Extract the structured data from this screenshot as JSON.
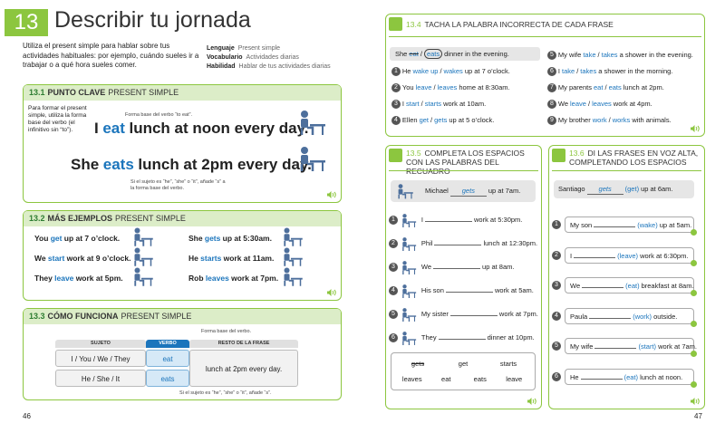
{
  "header": {
    "number": "13",
    "title": "Describir tu jornada",
    "intro": "Utiliza el present simple para hablar sobre tus actividades habituales: por ejemplo, cuándo sueles ir a trabajar o a qué hora sueles comer.",
    "legend": [
      {
        "label": "Lenguaje",
        "text": "Present simple"
      },
      {
        "label": "Vocabulario",
        "text": "Actividades diarias"
      },
      {
        "label": "Habilidad",
        "text": "Hablar de tus actividades diarias"
      }
    ]
  },
  "key_point": {
    "number": "13.1",
    "title": "PUNTO CLAVE",
    "subtitle": "PRESENT SIMPLE",
    "note": "Para formar el present simple, utiliza la forma base del verbo (el infinitivo sin “to”).",
    "sentences": [
      {
        "subject": "I",
        "verb": "eat",
        "rest": "lunch at noon every day.",
        "annotation": "Forma base del verbo “to eat”."
      },
      {
        "subject": "She",
        "verb": "eats",
        "rest": "lunch at 2pm every day.",
        "annotation": "Si el sujeto es “he”, “she” o “it”, añade “s” a la forma base del verbo."
      }
    ]
  },
  "more_examples": {
    "number": "13.2",
    "title": "MÁS EJEMPLOS",
    "subtitle": "PRESENT SIMPLE",
    "sentences": [
      {
        "subject": "You",
        "verb": "get",
        "rest": "up at 7 o’clock."
      },
      {
        "subject": "We",
        "verb": "start",
        "rest": "work at 9 o’clock."
      },
      {
        "subject": "They",
        "verb": "leave",
        "rest": "work at 5pm."
      },
      {
        "subject": "She",
        "verb": "gets",
        "rest": "up at 5:30am."
      },
      {
        "subject": "He",
        "verb": "starts",
        "rest": "work at 11am."
      },
      {
        "subject": "Rob",
        "verb": "leaves",
        "rest": "work at 7pm."
      }
    ]
  },
  "how_it_works": {
    "number": "13.3",
    "title": "CÓMO FUNCIONA",
    "subtitle": "PRESENT SIMPLE",
    "columns": [
      "SUJETO",
      "VERBO",
      "RESTO DE LA FRASE"
    ],
    "rows": [
      [
        "I / You / We / They",
        "eat"
      ],
      [
        "He / She / It",
        "eats"
      ]
    ],
    "rest": "lunch at 2pm every day.",
    "annotations": [
      "Forma base del verbo.",
      "Si el sujeto es “he”, “she” o “it”, añade “s”."
    ]
  },
  "exercise_4": {
    "number": "13.4",
    "title": "TACHA LA PALABRA INCORRECTA DE CADA FRASE",
    "separator": "/",
    "example": {
      "subject": "She",
      "option1": "eat",
      "option2": "eats",
      "rest": "dinner in the evening."
    },
    "items": [
      {
        "number": 1,
        "subject": "He",
        "option1": "wake up",
        "option2": "wakes",
        "rest": "up at 7 o’clock."
      },
      {
        "number": 2,
        "subject": "You",
        "option1": "leave",
        "option2": "leaves",
        "rest": "home at 8:30am."
      },
      {
        "number": 3,
        "subject": "I",
        "option1": "start",
        "option2": "starts",
        "rest": "work at 10am."
      },
      {
        "number": 4,
        "subject": "Ellen",
        "option1": "get",
        "option2": "gets",
        "rest": "up at 5 o’clock."
      },
      {
        "number": 5,
        "subject": "My wife",
        "option1": "take",
        "option2": "takes",
        "rest": "a shower in the evening."
      },
      {
        "number": 6,
        "subject": "I",
        "option1": "take",
        "option2": "takes",
        "rest": "a shower in the morning."
      },
      {
        "number": 7,
        "subject": "My parents",
        "option1": "eat",
        "option2": "eats",
        "rest": "lunch at 2pm."
      },
      {
        "number": 8,
        "subject": "We",
        "option1": "leave",
        "option2": "leaves",
        "rest": "work at 4pm."
      },
      {
        "number": 9,
        "subject": "My brother",
        "option1": "work",
        "option2": "works",
        "rest": "with animals."
      }
    ]
  },
  "exercise_5": {
    "number": "13.5",
    "title": "COMPLETA LOS ESPACIOS CON LAS PALABRAS DEL RECUADRO",
    "example": {
      "subject": "Michael",
      "answer": "gets",
      "rest": "up at 7am."
    },
    "items": [
      {
        "number": 1,
        "subject": "I",
        "rest": "work at 5:30pm."
      },
      {
        "number": 2,
        "subject": "Phil",
        "rest": "lunch at 12:30pm."
      },
      {
        "number": 3,
        "subject": "We",
        "rest": "up at 8am."
      },
      {
        "number": 4,
        "subject": "His son",
        "rest": "work at 5am."
      },
      {
        "number": 5,
        "subject": "My sister",
        "rest": "work at 7pm."
      },
      {
        "number": 6,
        "subject": "They",
        "rest": "dinner at 10pm."
      }
    ],
    "word_box": [
      "gets",
      "get",
      "starts",
      "leaves",
      "eat",
      "eats",
      "leave"
    ]
  },
  "exercise_6": {
    "number": "13.6",
    "title": "DI LAS FRASES EN VOZ ALTA, COMPLETANDO LOS ESPACIOS",
    "example": {
      "subject": "Santiago",
      "answer": "gets",
      "hint": "(get)",
      "rest": "up at 6am."
    },
    "items": [
      {
        "number": 1,
        "subject": "My son",
        "hint": "(wake)",
        "rest": "up at 5am."
      },
      {
        "number": 2,
        "subject": "I",
        "hint": "(leave)",
        "rest": "work at 6:30pm."
      },
      {
        "number": 3,
        "subject": "We",
        "hint": "(eat)",
        "rest": "breakfast at 8am."
      },
      {
        "number": 4,
        "subject": "Paula",
        "hint": "(work)",
        "rest": "outside."
      },
      {
        "number": 5,
        "subject": "My wife",
        "hint": "(start)",
        "rest": "work at 7am."
      },
      {
        "number": 6,
        "subject": "He",
        "hint": "(eat)",
        "rest": "lunch at noon."
      }
    ]
  },
  "page_numbers": [
    "46",
    "47"
  ]
}
